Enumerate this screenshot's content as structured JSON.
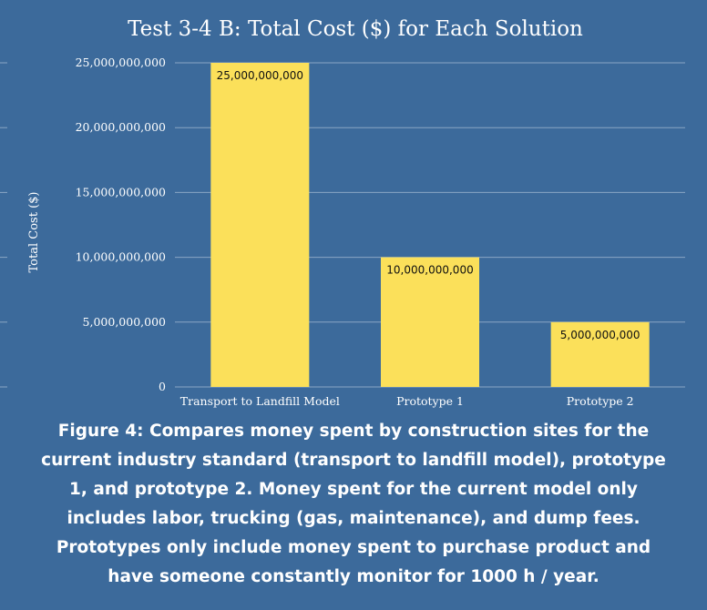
{
  "chart_data": {
    "type": "bar",
    "title": "Test 3-4 B: Total Cost ($) for Each Solution",
    "xlabel": "",
    "ylabel": "Total Cost ($)",
    "categories": [
      "Transport to Landfill Model",
      "Prototype 1",
      "Prototype 2"
    ],
    "values": [
      25000000000,
      10000000000,
      5000000000
    ],
    "data_labels": [
      "25,000,000,000",
      "10,000,000,000",
      "5,000,000,000"
    ],
    "ylim": [
      0,
      25000000000
    ],
    "yticks": [
      0,
      5000000000,
      10000000000,
      15000000000,
      20000000000,
      25000000000
    ],
    "ytick_labels": [
      "0",
      "5,000,000,000",
      "10,000,000,000",
      "15,000,000,000",
      "20,000,000,000",
      "25,000,000,000"
    ],
    "grid": true,
    "legend": "none"
  },
  "colors": {
    "background": "#3c6a9b",
    "bar": "#fbe05a",
    "grid": "#8aa6c4",
    "text": "#ffffff",
    "label_text": "#111111"
  },
  "caption": {
    "text": "Figure 4: Compares money spent by construction sites for the current industry standard (transport to landfill model), prototype 1, and prototype 2. Money spent for the current model only includes labor, trucking (gas, maintenance), and dump fees. Prototypes only include money spent to purchase product  and have someone constantly monitor for 1000 h / year."
  }
}
